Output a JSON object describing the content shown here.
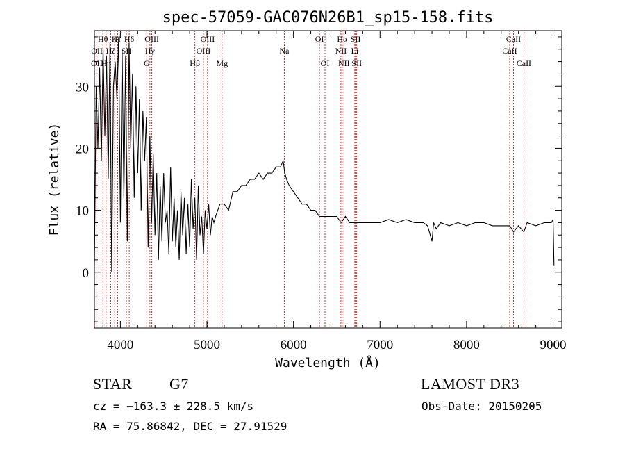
{
  "chart_data": {
    "type": "line",
    "title": "spec-57059-GAC076N26B1_sp15-158.fits",
    "xlabel": "Wavelength (Å)",
    "ylabel": "Flux (relative)",
    "xlim": [
      3700,
      9100
    ],
    "ylim": [
      -9,
      39
    ],
    "xticks": [
      4000,
      5000,
      6000,
      7000,
      8000,
      9000
    ],
    "yticks": [
      0,
      10,
      20,
      30
    ],
    "series": [
      {
        "name": "flux",
        "x": [
          3700,
          3720,
          3740,
          3760,
          3780,
          3800,
          3820,
          3840,
          3860,
          3880,
          3900,
          3920,
          3940,
          3960,
          3980,
          4000,
          4020,
          4040,
          4060,
          4080,
          4100,
          4120,
          4140,
          4160,
          4180,
          4200,
          4220,
          4240,
          4260,
          4280,
          4300,
          4320,
          4340,
          4360,
          4380,
          4400,
          4420,
          4440,
          4460,
          4480,
          4500,
          4520,
          4540,
          4560,
          4580,
          4600,
          4620,
          4640,
          4660,
          4680,
          4700,
          4720,
          4740,
          4760,
          4780,
          4800,
          4820,
          4840,
          4860,
          4880,
          4900,
          4920,
          4940,
          4960,
          4980,
          5000,
          5020,
          5040,
          5060,
          5080,
          5100,
          5150,
          5200,
          5250,
          5300,
          5350,
          5400,
          5450,
          5500,
          5550,
          5600,
          5650,
          5700,
          5750,
          5800,
          5850,
          5880,
          5900,
          5920,
          5950,
          6000,
          6050,
          6100,
          6150,
          6200,
          6250,
          6300,
          6350,
          6400,
          6450,
          6500,
          6550,
          6600,
          6650,
          6700,
          6750,
          6800,
          6850,
          6900,
          6950,
          7000,
          7100,
          7200,
          7300,
          7400,
          7500,
          7550,
          7600,
          7620,
          7650,
          7700,
          7800,
          7900,
          8000,
          8100,
          8200,
          8300,
          8400,
          8500,
          8542,
          8600,
          8662,
          8700,
          8800,
          8900,
          8980,
          9000,
          9010
        ],
        "values": [
          1,
          30,
          20,
          33,
          18,
          36,
          22,
          35,
          15,
          37,
          0,
          30,
          34,
          28,
          38,
          8,
          36,
          12,
          35,
          5,
          37,
          20,
          32,
          12,
          30,
          16,
          28,
          10,
          26,
          18,
          25,
          4,
          22,
          8,
          19,
          6,
          16,
          2,
          14,
          5,
          16,
          8,
          10,
          3,
          17,
          5,
          12,
          4,
          10,
          2,
          13,
          6,
          12,
          3,
          11,
          4,
          15,
          7,
          12,
          2,
          14,
          6,
          9,
          3,
          10,
          7,
          11,
          6,
          9,
          8,
          9,
          11,
          11,
          10,
          13,
          13,
          14,
          14,
          15,
          15,
          16,
          15,
          16,
          16,
          17,
          17,
          18,
          16,
          15,
          14,
          13,
          12,
          11,
          11,
          10,
          10,
          9,
          9,
          9,
          9,
          9,
          8,
          9,
          8,
          8,
          8,
          8,
          8,
          8,
          8,
          8,
          8.5,
          8,
          8.5,
          8,
          8,
          7.5,
          5,
          8,
          7,
          8,
          7.5,
          8,
          7.5,
          8,
          8,
          7.5,
          7.5,
          7.5,
          6.5,
          7.5,
          6.5,
          8,
          7.5,
          8,
          8,
          8.5,
          1
        ]
      }
    ],
    "lines": [
      {
        "label": "Hθ",
        "x": 3798,
        "row": 0
      },
      {
        "label": "Hη",
        "x": 3835,
        "row": 2
      },
      {
        "label": "OII",
        "x": 3727,
        "row": 2
      },
      {
        "label": "OII",
        "x": 3729,
        "row": 1
      },
      {
        "label": "Hζ",
        "x": 3889,
        "row": 1
      },
      {
        "label": "K",
        "x": 3934,
        "row": 0
      },
      {
        "label": "H",
        "x": 3969,
        "row": 0
      },
      {
        "label": "SII",
        "x": 4069,
        "row": 1
      },
      {
        "label": "Hδ",
        "x": 4102,
        "row": 0
      },
      {
        "label": "OIII",
        "x": 4363,
        "row": 0
      },
      {
        "label": "Hγ",
        "x": 4341,
        "row": 1
      },
      {
        "label": "G",
        "x": 4304,
        "row": 2
      },
      {
        "label": "Hβ",
        "x": 4861,
        "row": 2
      },
      {
        "label": "OIII",
        "x": 5007,
        "row": 0
      },
      {
        "label": "OIII",
        "x": 4959,
        "row": 1
      },
      {
        "label": "Mg",
        "x": 5175,
        "row": 2
      },
      {
        "label": "Na",
        "x": 5894,
        "row": 1
      },
      {
        "label": "OI",
        "x": 6300,
        "row": 0
      },
      {
        "label": "OI",
        "x": 6364,
        "row": 2
      },
      {
        "label": "Hα",
        "x": 6563,
        "row": 0
      },
      {
        "label": "NII",
        "x": 6548,
        "row": 1
      },
      {
        "label": "NII",
        "x": 6583,
        "row": 2
      },
      {
        "label": "SII",
        "x": 6717,
        "row": 0
      },
      {
        "label": "Li",
        "x": 6708,
        "row": 1
      },
      {
        "label": "SII",
        "x": 6731,
        "row": 2
      },
      {
        "label": "CaII",
        "x": 8542,
        "row": 0
      },
      {
        "label": "CaII",
        "x": 8498,
        "row": 1
      },
      {
        "label": "CaII",
        "x": 8662,
        "row": 2
      }
    ]
  },
  "info": {
    "object_class": "STAR",
    "subclass": "G7",
    "survey": "LAMOST DR3",
    "velocity": "cz = −163.3 ± 228.5 km/s",
    "obs_date": "Obs-Date: 20150205",
    "coords": "RA =  75.86842, DEC =  27.91529"
  },
  "colors": {
    "line_marker": "#c00000",
    "spectrum": "#000000"
  }
}
